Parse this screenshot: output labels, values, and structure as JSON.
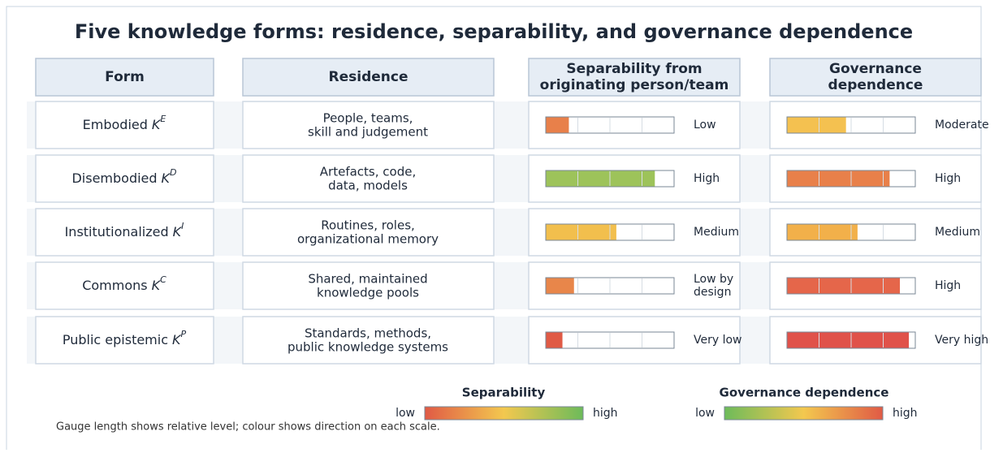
{
  "title": "Five knowledge forms: residence, separability, and governance dependence",
  "columns": [
    [
      "Form"
    ],
    [
      "Residence"
    ],
    [
      "Separability from",
      "originating person/team"
    ],
    [
      "Governance",
      "dependence"
    ]
  ],
  "rows": [
    {
      "form": {
        "name": "Embodied",
        "symbol": "K",
        "sup": "E"
      },
      "residence": [
        "People, teams,",
        "skill and judgement"
      ],
      "separability": {
        "level": 18,
        "color": "#e8804a",
        "label": [
          "Low"
        ]
      },
      "governance": {
        "level": 46,
        "color": "#f4c150",
        "label": [
          "Moderate"
        ]
      }
    },
    {
      "form": {
        "name": "Disembodied",
        "symbol": "K",
        "sup": "D"
      },
      "residence": [
        "Artefacts, code,",
        "data, models"
      ],
      "separability": {
        "level": 85,
        "color": "#9dc35a",
        "label": [
          "High"
        ]
      },
      "governance": {
        "level": 80,
        "color": "#e8804a",
        "label": [
          "High"
        ]
      }
    },
    {
      "form": {
        "name": "Institutionalized",
        "symbol": "K",
        "sup": "I"
      },
      "residence": [
        "Routines, roles,",
        "organizational memory"
      ],
      "separability": {
        "level": 55,
        "color": "#f2bf4d",
        "label": [
          "Medium"
        ]
      },
      "governance": {
        "level": 55,
        "color": "#f2b04a",
        "label": [
          "Medium"
        ]
      }
    },
    {
      "form": {
        "name": "Commons",
        "symbol": "K",
        "sup": "C"
      },
      "residence": [
        "Shared, maintained",
        "knowledge pools"
      ],
      "separability": {
        "level": 22,
        "color": "#e8864a",
        "label": [
          "Low by",
          "design"
        ]
      },
      "governance": {
        "level": 88,
        "color": "#e5664a",
        "label": [
          "High"
        ]
      }
    },
    {
      "form": {
        "name": "Public epistemic",
        "symbol": "K",
        "sup": "P"
      },
      "residence": [
        "Standards, methods,",
        "public knowledge systems"
      ],
      "separability": {
        "level": 13,
        "color": "#e05a45",
        "label": [
          "Very low"
        ]
      },
      "governance": {
        "level": 95,
        "color": "#e0524a",
        "label": [
          "Very high"
        ]
      }
    }
  ],
  "legend": [
    {
      "title": "Separability",
      "low": "low",
      "high": "high",
      "colors": [
        "#e05a45",
        "#f3c84f",
        "#6dbb5a"
      ]
    },
    {
      "title": "Governance dependence",
      "low": "low",
      "high": "high",
      "colors": [
        "#6dbb5a",
        "#f3c84f",
        "#e05a45"
      ]
    }
  ],
  "footnote": "Gauge length shows relative level; colour shows direction on each scale."
}
